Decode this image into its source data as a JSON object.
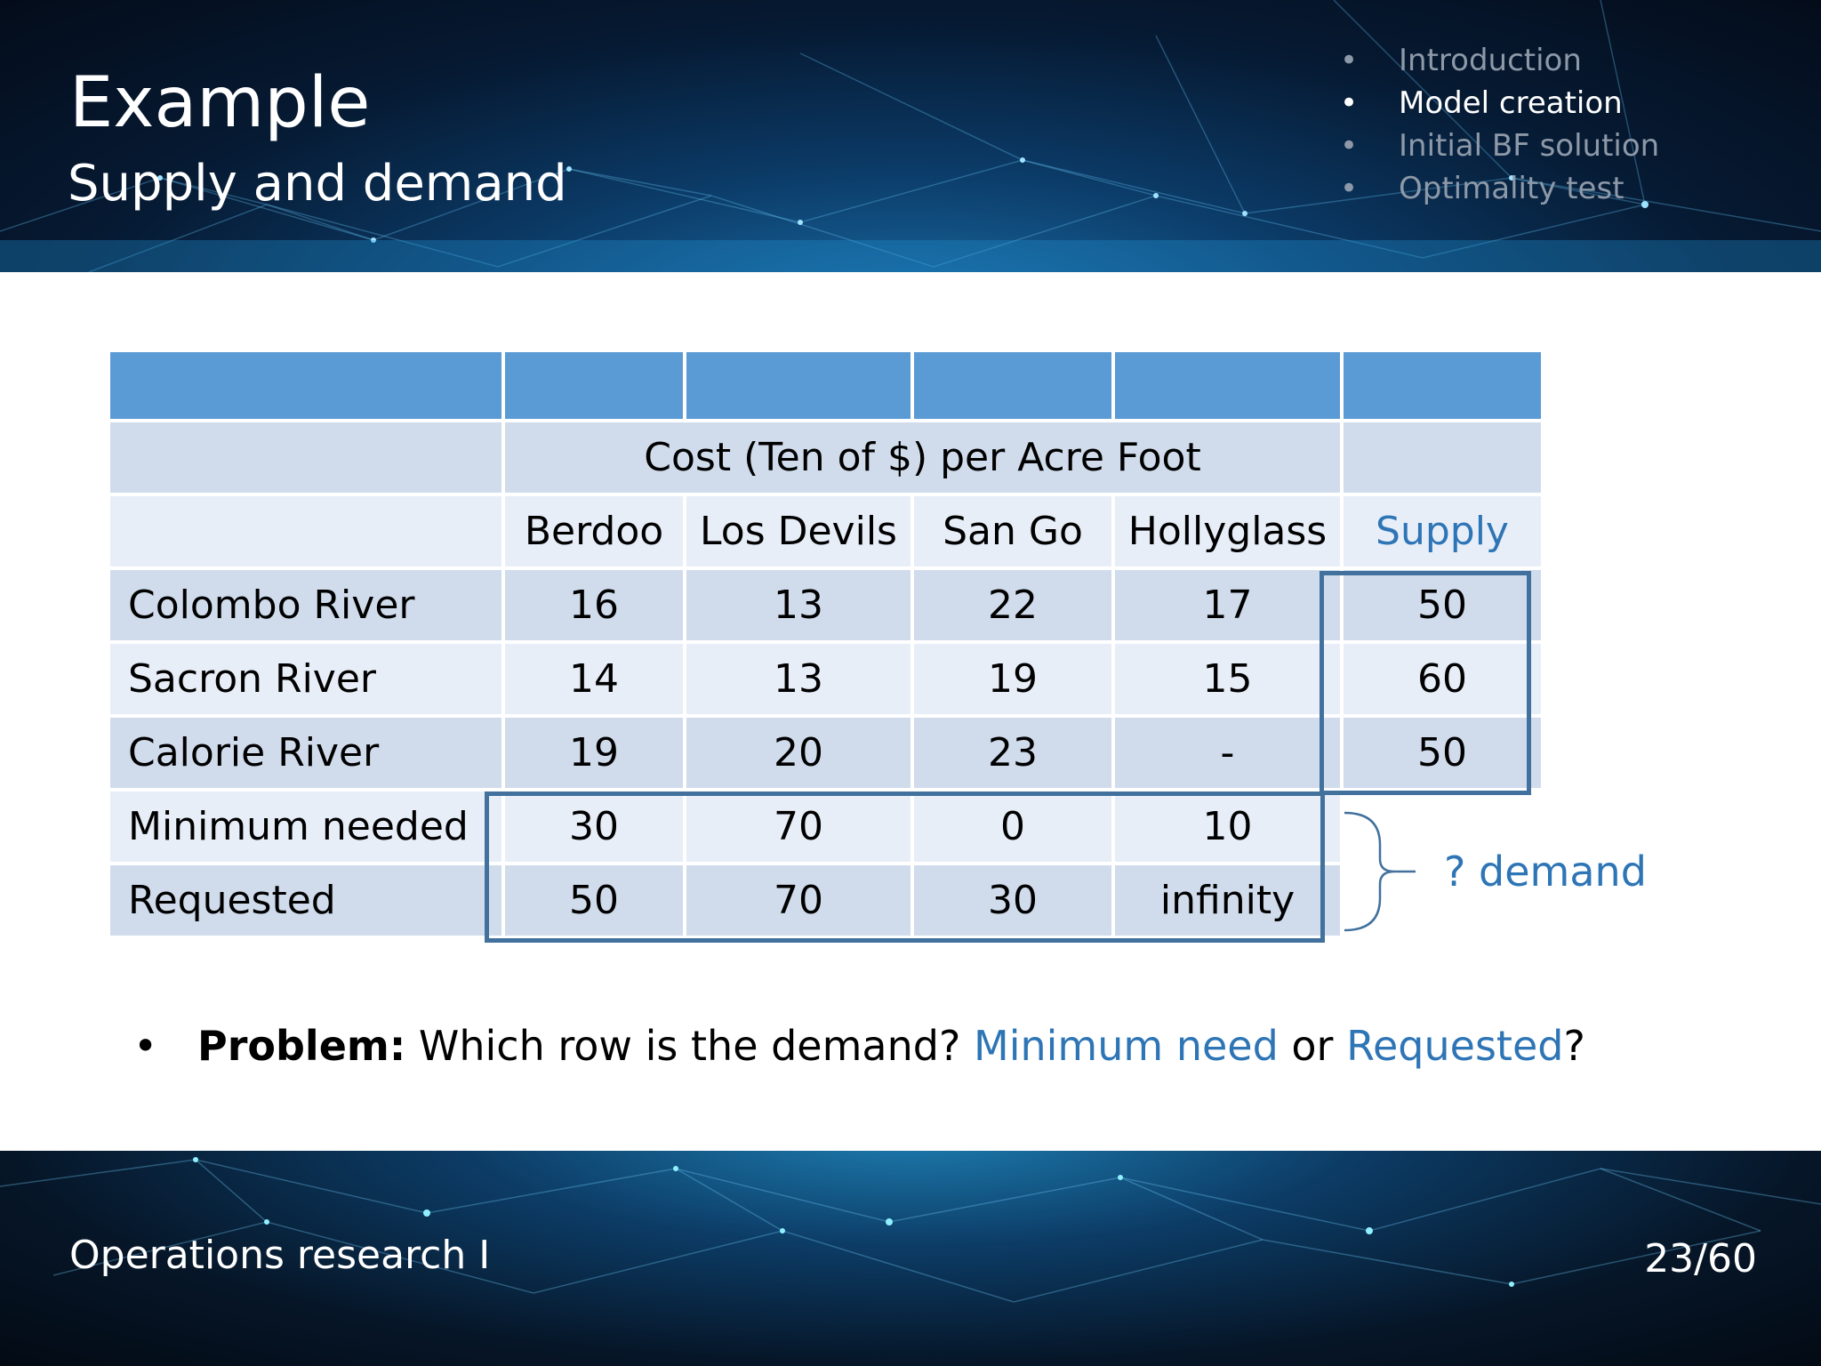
{
  "header": {
    "title": "Example",
    "subtitle": "Supply and demand",
    "agenda": [
      {
        "label": "Introduction",
        "active": false
      },
      {
        "label": "Model creation",
        "active": true
      },
      {
        "label": "Initial BF solution",
        "active": false
      },
      {
        "label": "Optimality test",
        "active": false
      }
    ],
    "bullet": "•"
  },
  "table": {
    "cost_header": "Cost (Ten of $) per Acre Foot",
    "columns": [
      "Berdoo",
      "Los Devils",
      "San Go",
      "Hollyglass"
    ],
    "supply_label": "Supply",
    "rows": [
      {
        "label": "Colombo River",
        "values": [
          "16",
          "13",
          "22",
          "17"
        ],
        "supply": "50"
      },
      {
        "label": "Sacron River",
        "values": [
          "14",
          "13",
          "19",
          "15"
        ],
        "supply": "60"
      },
      {
        "label": "Calorie River",
        "values": [
          "19",
          "20",
          "23",
          "-"
        ],
        "supply": "50"
      },
      {
        "label": "Minimum needed",
        "values": [
          "30",
          "70",
          "0",
          "10"
        ],
        "supply": ""
      },
      {
        "label": "Requested",
        "values": [
          "50",
          "70",
          "30",
          "infinity"
        ],
        "supply": ""
      }
    ]
  },
  "annotation": {
    "demand_label": "? demand"
  },
  "problem": {
    "bold": "Problem:",
    "text1": " Which row is the demand? ",
    "option1": "Minimum need",
    "or": " or ",
    "option2": "Requested",
    "end": "?"
  },
  "footer": {
    "course": "Operations research I",
    "page": "23/60"
  },
  "colors": {
    "accent": "#2e75b6",
    "header_blue": "#5b9bd5",
    "row_dark": "#d0dcec",
    "row_light": "#e8eef8",
    "box": "#41719c"
  }
}
